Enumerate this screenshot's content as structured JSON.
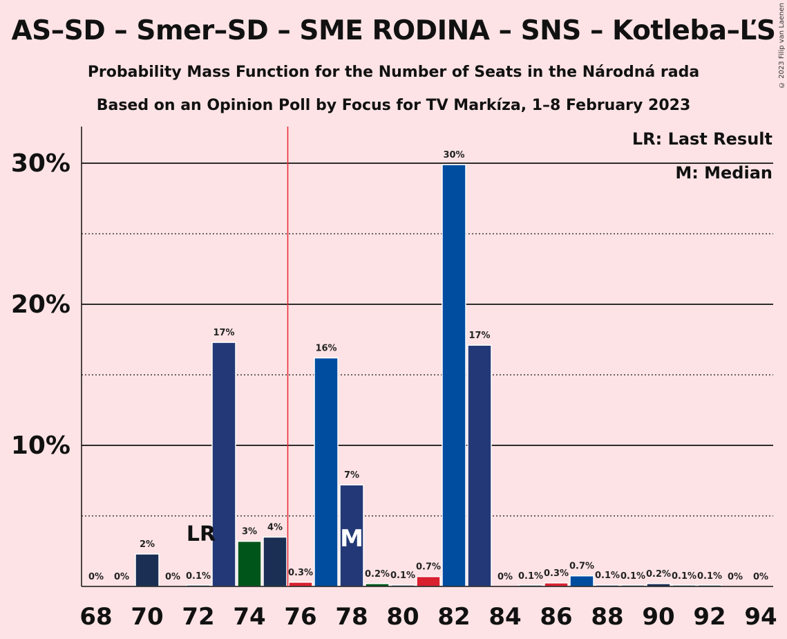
{
  "title": "AS–SD – Smer–SD – SME RODINA – SNS – Kotleba–ĽS",
  "subtitle1": "Probability Mass Function for the Number of Seats in the Národná rada",
  "subtitle2": "Based on an Opinion Poll by Focus for TV Markíza, 1–8 February 2023",
  "copyright": "© 2023 Filip van Laenen",
  "legend": {
    "lr": "LR: Last Result",
    "m": "M: Median"
  },
  "markers": {
    "lr_label": "LR",
    "median_label": "M",
    "lr_seat": 72,
    "median_seat": 78,
    "majority_line": 75.5
  },
  "chart_data": {
    "type": "bar",
    "x": [
      68,
      69,
      70,
      71,
      72,
      73,
      74,
      75,
      76,
      77,
      78,
      79,
      80,
      81,
      82,
      83,
      84,
      85,
      86,
      87,
      88,
      89,
      90,
      91,
      92,
      93,
      94
    ],
    "values": [
      0,
      0,
      2.3,
      0,
      0.05,
      17.3,
      3.2,
      3.5,
      0.3,
      16.2,
      7.2,
      0.2,
      0.1,
      0.7,
      29.9,
      17.1,
      0,
      0.05,
      0.25,
      0.75,
      0.1,
      0.05,
      0.2,
      0.05,
      0.05,
      0,
      0
    ],
    "labels": [
      "0%",
      "0%",
      "2%",
      "0%",
      "0.1%",
      "17%",
      "3%",
      "4%",
      "0.3%",
      "16%",
      "7%",
      "0.2%",
      "0.1%",
      "0.7%",
      "30%",
      "17%",
      "0%",
      "0.1%",
      "0.3%",
      "0.7%",
      "0.1%",
      "0.1%",
      "0.2%",
      "0.1%",
      "0.1%",
      "0%",
      "0%"
    ],
    "colors": [
      "#1b2f55",
      "#1b2f55",
      "#1b2f55",
      "#1b2f55",
      "#1b2f55",
      "#233876",
      "#00561a",
      "#1b2f55",
      "#d9202f",
      "#004da0",
      "#233876",
      "#00561a",
      "#1b2f55",
      "#d9202f",
      "#004da0",
      "#233876",
      "#1b2f55",
      "#1b2f55",
      "#d9202f",
      "#004da0",
      "#233876",
      "#1b2f55",
      "#1b2f55",
      "#1b2f55",
      "#1b2f55",
      "#1b2f55",
      "#1b2f55"
    ],
    "x_ticks": [
      "68",
      "70",
      "72",
      "74",
      "76",
      "78",
      "80",
      "82",
      "84",
      "86",
      "88",
      "90",
      "92",
      "94"
    ],
    "y_ticks": [
      "10%",
      "20%",
      "30%"
    ],
    "ylim": [
      0,
      32.5
    ]
  }
}
